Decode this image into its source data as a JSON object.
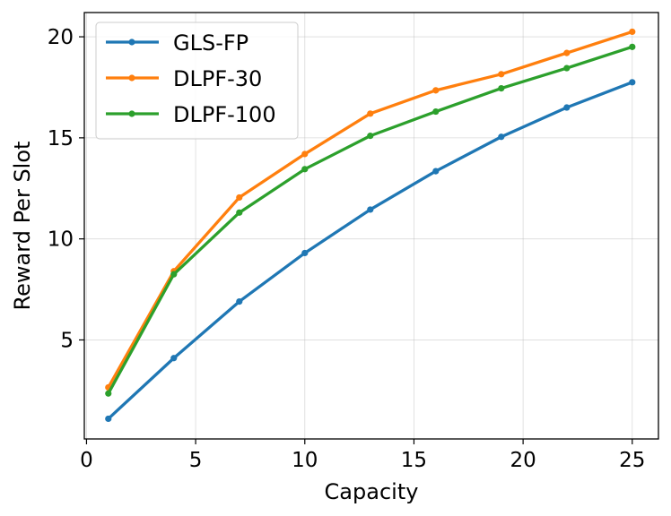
{
  "chart_data": {
    "type": "line",
    "title": "",
    "xlabel": "Capacity",
    "ylabel": "Reward Per Slot",
    "xlim": [
      -0.1,
      26.2
    ],
    "ylim": [
      0.1,
      21.2
    ],
    "xticks": [
      0,
      5,
      10,
      15,
      20,
      25
    ],
    "yticks": [
      5,
      10,
      15,
      20
    ],
    "grid": true,
    "legend_position": "upper-left",
    "x": [
      1,
      4,
      7,
      10,
      13,
      16,
      19,
      22,
      25
    ],
    "series": [
      {
        "name": "GLS-FP",
        "color": "#1f77b4",
        "values": [
          1.1,
          4.1,
          6.9,
          9.3,
          11.45,
          13.35,
          15.05,
          16.5,
          17.75
        ]
      },
      {
        "name": "DLPF-30",
        "color": "#ff7f0e",
        "values": [
          2.65,
          8.4,
          12.05,
          14.2,
          16.2,
          17.35,
          18.15,
          19.2,
          20.25
        ]
      },
      {
        "name": "DLPF-100",
        "color": "#2ca02c",
        "values": [
          2.35,
          8.25,
          11.3,
          13.45,
          15.1,
          16.3,
          17.45,
          18.45,
          19.5
        ]
      }
    ]
  }
}
